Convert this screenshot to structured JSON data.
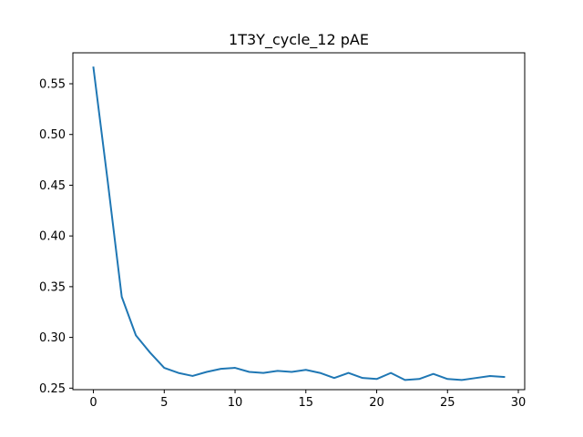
{
  "chart_data": {
    "type": "line",
    "title": "1T3Y_cycle_12 pAE",
    "xlabel": "",
    "ylabel": "",
    "xlim": [
      -1.45,
      30.45
    ],
    "ylim": [
      0.2485,
      0.5805
    ],
    "xticks": [
      0,
      5,
      10,
      15,
      20,
      25,
      30
    ],
    "yticks": [
      0.25,
      0.3,
      0.35,
      0.4,
      0.45,
      0.5,
      0.55
    ],
    "grid": false,
    "legend": "none",
    "series": [
      {
        "color": "#1f77b4",
        "x": [
          0,
          1,
          2,
          3,
          4,
          5,
          6,
          7,
          8,
          9,
          10,
          11,
          12,
          13,
          14,
          15,
          16,
          17,
          18,
          19,
          20,
          21,
          22,
          23,
          24,
          25,
          26,
          27,
          28,
          29
        ],
        "y": [
          0.566,
          0.455,
          0.34,
          0.302,
          0.285,
          0.27,
          0.265,
          0.262,
          0.266,
          0.269,
          0.27,
          0.266,
          0.265,
          0.267,
          0.266,
          0.268,
          0.265,
          0.26,
          0.265,
          0.26,
          0.259,
          0.265,
          0.258,
          0.259,
          0.264,
          0.259,
          0.258,
          0.26,
          0.262,
          0.261
        ]
      }
    ]
  }
}
